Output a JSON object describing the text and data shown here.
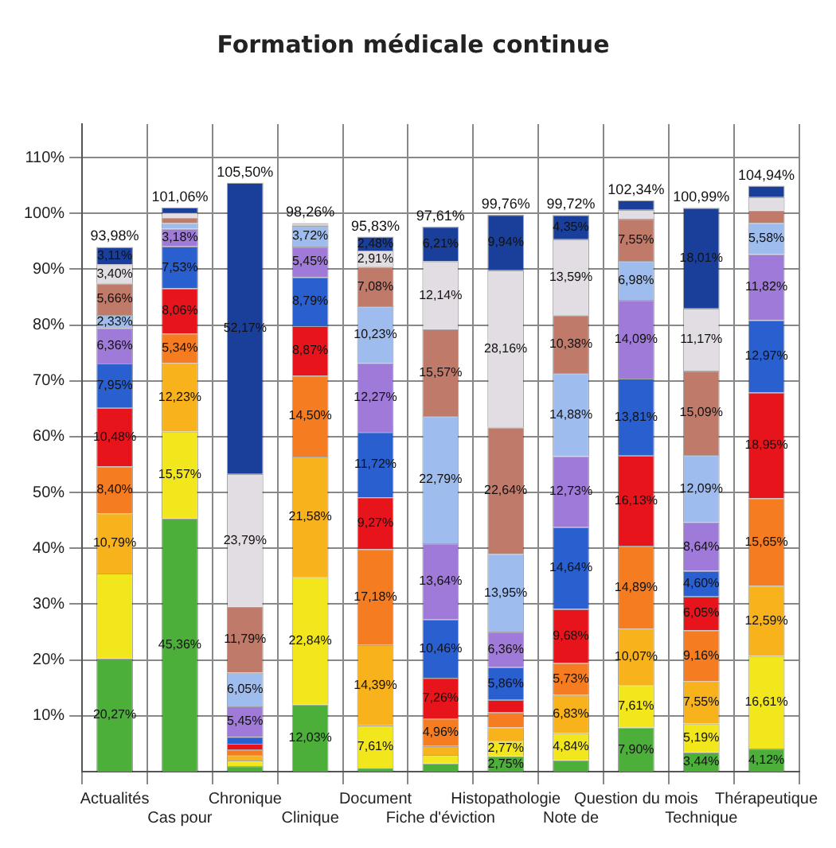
{
  "chart_data": {
    "type": "bar",
    "stacked": true,
    "title": "Formation médicale continue",
    "categories": [
      "Actualités",
      "Cas pour",
      "Chronique",
      "Clinique",
      "Document",
      "Fiche d'éviction",
      "Histopathologie",
      "Note de",
      "Question du mois",
      "Technique",
      "Thérapeutique"
    ],
    "ylim": [
      0,
      116
    ],
    "yticks": [
      {
        "value": 10,
        "label": "10%"
      },
      {
        "value": 20,
        "label": "20%"
      },
      {
        "value": 30,
        "label": "30%"
      },
      {
        "value": 40,
        "label": "40%"
      },
      {
        "value": 50,
        "label": "50%"
      },
      {
        "value": 60,
        "label": "60%"
      },
      {
        "value": 70,
        "label": "70%"
      },
      {
        "value": 80,
        "label": "80%"
      },
      {
        "value": 90,
        "label": "90%"
      },
      {
        "value": 100,
        "label": "100%"
      },
      {
        "value": 110,
        "label": "110%"
      }
    ],
    "grid": true,
    "totals": [
      "93,98%",
      "101,06%",
      "105,50%",
      "98,26%",
      "95,83%",
      "97,61%",
      "99,76%",
      "99,72%",
      "102,34%",
      "100,99%",
      "104,94%"
    ],
    "series": [
      {
        "color": "#4caf3a",
        "values": [
          20.27,
          45.36,
          1.0,
          12.03,
          0.69,
          1.5,
          2.75,
          2.07,
          7.9,
          3.44,
          4.12
        ],
        "value_labels": [
          "20,27%",
          "45,36%",
          null,
          "12,03%",
          null,
          null,
          "2,75%",
          null,
          "7,90%",
          "3,44%",
          "4,12%"
        ]
      },
      {
        "color": "#f2e61c",
        "values": [
          15.23,
          15.57,
          1.0,
          22.84,
          7.61,
          1.5,
          2.77,
          4.84,
          7.61,
          5.19,
          16.61
        ],
        "value_labels": [
          null,
          "15,57%",
          null,
          "22,84%",
          "7,61%",
          null,
          "2,77%",
          "4,84%",
          "7,61%",
          "5,19%",
          "16,61%"
        ]
      },
      {
        "color": "#f7b21c",
        "values": [
          10.79,
          12.23,
          1.0,
          21.58,
          14.39,
          1.58,
          2.4,
          6.83,
          10.07,
          7.55,
          12.59
        ],
        "value_labels": [
          "10,79%",
          "12,23%",
          null,
          "21,58%",
          "14,39%",
          null,
          null,
          "6,83%",
          "10,07%",
          "7,55%",
          "12,59%"
        ]
      },
      {
        "color": "#f57c20",
        "values": [
          8.4,
          5.34,
          1.0,
          14.5,
          17.18,
          4.96,
          2.7,
          5.73,
          14.89,
          9.16,
          15.65
        ],
        "value_labels": [
          "8,40%",
          "5,34%",
          null,
          "14,50%",
          "17,18%",
          "4,96%",
          null,
          "5,73%",
          "14,89%",
          "9,16%",
          "15,65%"
        ]
      },
      {
        "color": "#e8141c",
        "values": [
          10.48,
          8.06,
          1.0,
          8.87,
          9.27,
          7.26,
          2.23,
          9.68,
          16.13,
          6.05,
          18.95
        ],
        "value_labels": [
          "10,48%",
          "8,06%",
          null,
          "8,87%",
          "9,27%",
          "7,26%",
          null,
          "9,68%",
          "16,13%",
          "6,05%",
          "18,95%"
        ]
      },
      {
        "color": "#2a5fd0",
        "values": [
          7.95,
          7.53,
          1.25,
          8.79,
          11.72,
          10.46,
          5.86,
          14.64,
          13.81,
          4.6,
          12.97
        ],
        "value_labels": [
          "7,95%",
          "7,53%",
          null,
          "8,79%",
          "11,72%",
          "10,46%",
          "5,86%",
          "14,64%",
          "13,81%",
          "4,60%",
          "12,97%"
        ]
      },
      {
        "color": "#a07ad8",
        "values": [
          6.36,
          3.18,
          5.45,
          5.45,
          12.27,
          13.64,
          6.36,
          12.73,
          14.09,
          8.64,
          11.82
        ],
        "value_labels": [
          "6,36%",
          "3,18%",
          "5,45%",
          "5,45%",
          "12,27%",
          "13,64%",
          "6,36%",
          "12,73%",
          "14,09%",
          "8,64%",
          "11,82%"
        ]
      },
      {
        "color": "#9fbcef",
        "values": [
          2.33,
          1.0,
          6.05,
          3.72,
          10.23,
          22.79,
          13.95,
          14.88,
          6.98,
          12.09,
          5.58
        ],
        "value_labels": [
          "2,33%",
          null,
          "6,05%",
          "3,72%",
          "10,23%",
          "22,79%",
          "13,95%",
          "14,88%",
          "6,98%",
          "12,09%",
          "5,58%"
        ]
      },
      {
        "color": "#c07a6a",
        "values": [
          5.66,
          1.0,
          11.79,
          0.2,
          7.08,
          15.57,
          22.64,
          10.38,
          7.55,
          15.09,
          2.2
        ],
        "value_labels": [
          "5,66%",
          null,
          "11,79%",
          null,
          "7,08%",
          "15,57%",
          "22,64%",
          "10,38%",
          "7,55%",
          "15,09%",
          null
        ]
      },
      {
        "color": "#e2dde2",
        "values": [
          3.4,
          0.9,
          23.79,
          0.14,
          2.91,
          12.14,
          28.16,
          13.59,
          1.6,
          11.17,
          2.43
        ],
        "value_labels": [
          "3,40%",
          null,
          "23,79%",
          null,
          "2,91%",
          "12,14%",
          "28,16%",
          "13,59%",
          null,
          "11,17%",
          null
        ]
      },
      {
        "color": "#1a3f9a",
        "values": [
          3.11,
          0.89,
          52.17,
          0.14,
          2.48,
          6.21,
          9.94,
          4.35,
          1.71,
          18.01,
          2.02
        ],
        "value_labels": [
          "3,11%",
          null,
          "52,17%",
          null,
          "2,48%",
          "6,21%",
          "9,94%",
          "4,35%",
          null,
          "18,01%",
          null
        ]
      }
    ]
  }
}
